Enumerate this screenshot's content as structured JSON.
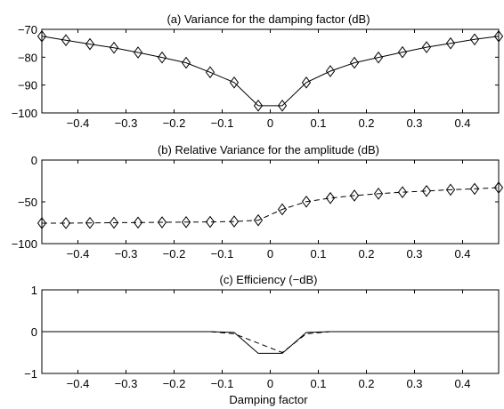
{
  "chart_data": [
    {
      "type": "line",
      "title": "(a) Variance for the damping factor (dB)",
      "xlabel": "",
      "ylabel": "",
      "xlim": [
        -0.475,
        0.475
      ],
      "ylim": [
        -100,
        -70
      ],
      "xticks": [
        -0.4,
        -0.3,
        -0.2,
        -0.1,
        0,
        0.1,
        0.2,
        0.3,
        0.4
      ],
      "xticklabels": [
        "-0.4",
        "-0.3",
        "-0.2",
        "-0.1",
        "0",
        "0.1",
        "0.2",
        "0.3",
        "0.4"
      ],
      "yticks": [
        -70,
        -80,
        -90,
        -100
      ],
      "yticklabels": [
        "-70",
        "-80",
        "-90",
        "-100"
      ],
      "grid": false,
      "series": [
        {
          "style": "solid",
          "x": [
            -0.475,
            -0.425,
            -0.375,
            -0.325,
            -0.275,
            -0.225,
            -0.175,
            -0.125,
            -0.075,
            -0.025,
            0.025,
            0.075,
            0.125,
            0.175,
            0.225,
            0.275,
            0.325,
            0.375,
            0.425,
            0.475
          ],
          "y": [
            -72.5,
            -73.9,
            -75.3,
            -76.6,
            -78.3,
            -80.1,
            -82.0,
            -85.4,
            -89.1,
            -97.4,
            -97.4,
            -89.1,
            -85.0,
            -82.0,
            -80.1,
            -78.2,
            -76.4,
            -75.0,
            -73.6,
            -72.5
          ]
        },
        {
          "style": "markers-diamond",
          "x": [
            -0.475,
            -0.425,
            -0.375,
            -0.325,
            -0.275,
            -0.225,
            -0.175,
            -0.125,
            -0.075,
            -0.025,
            0.025,
            0.075,
            0.125,
            0.175,
            0.225,
            0.275,
            0.325,
            0.375,
            0.425,
            0.475
          ],
          "y": [
            -72.5,
            -73.9,
            -75.3,
            -76.6,
            -78.3,
            -80.1,
            -82.0,
            -85.4,
            -89.1,
            -97.4,
            -97.4,
            -89.1,
            -85.0,
            -82.0,
            -80.1,
            -78.2,
            -76.4,
            -75.0,
            -73.6,
            -72.5
          ]
        }
      ]
    },
    {
      "type": "line",
      "title": "(b) Relative Variance for the amplitude (dB)",
      "xlabel": "",
      "ylabel": "",
      "xlim": [
        -0.475,
        0.475
      ],
      "ylim": [
        -100,
        0
      ],
      "xticks": [
        -0.4,
        -0.3,
        -0.2,
        -0.1,
        0,
        0.1,
        0.2,
        0.3,
        0.4
      ],
      "xticklabels": [
        "-0.4",
        "-0.3",
        "-0.2",
        "-0.1",
        "0",
        "0.1",
        "0.2",
        "0.3",
        "0.4"
      ],
      "yticks": [
        0,
        -50,
        -100
      ],
      "yticklabels": [
        "0",
        "-50",
        "-100"
      ],
      "grid": false,
      "series": [
        {
          "style": "dashed-diamond",
          "x": [
            -0.475,
            -0.425,
            -0.375,
            -0.325,
            -0.275,
            -0.225,
            -0.175,
            -0.125,
            -0.075,
            -0.025,
            0.025,
            0.075,
            0.125,
            0.175,
            0.225,
            0.275,
            0.325,
            0.375,
            0.425,
            0.475
          ],
          "y": [
            -75.5,
            -75.5,
            -75.2,
            -75.0,
            -74.8,
            -74.5,
            -74.3,
            -74.0,
            -73.5,
            -72.0,
            -59.0,
            -49.8,
            -45.5,
            -42.5,
            -40.3,
            -38.5,
            -37.0,
            -35.5,
            -34.5,
            -33.0
          ]
        }
      ]
    },
    {
      "type": "line",
      "title": "(c) Efficiency (−dB)",
      "xlabel": "Damping factor",
      "ylabel": "",
      "xlim": [
        -0.475,
        0.475
      ],
      "ylim": [
        -1,
        1
      ],
      "xticks": [
        -0.4,
        -0.3,
        -0.2,
        -0.1,
        0,
        0.1,
        0.2,
        0.3,
        0.4
      ],
      "xticklabels": [
        "-0.4",
        "-0.3",
        "-0.2",
        "-0.1",
        "0",
        "0.1",
        "0.2",
        "0.3",
        "0.4"
      ],
      "yticks": [
        1,
        0,
        -1
      ],
      "yticklabels": [
        "1",
        "0",
        "-1"
      ],
      "grid": false,
      "series": [
        {
          "style": "solid",
          "x": [
            -0.475,
            -0.125,
            -0.075,
            -0.025,
            0.025,
            0.075,
            0.125,
            0.475
          ],
          "y": [
            0,
            0,
            -0.02,
            -0.52,
            -0.52,
            -0.02,
            0,
            0
          ]
        },
        {
          "style": "dashed",
          "x": [
            -0.475,
            -0.125,
            -0.075,
            0.025,
            0.075,
            0.125,
            0.475
          ],
          "y": [
            0,
            0,
            -0.05,
            -0.5,
            -0.05,
            0,
            0
          ]
        }
      ]
    }
  ]
}
